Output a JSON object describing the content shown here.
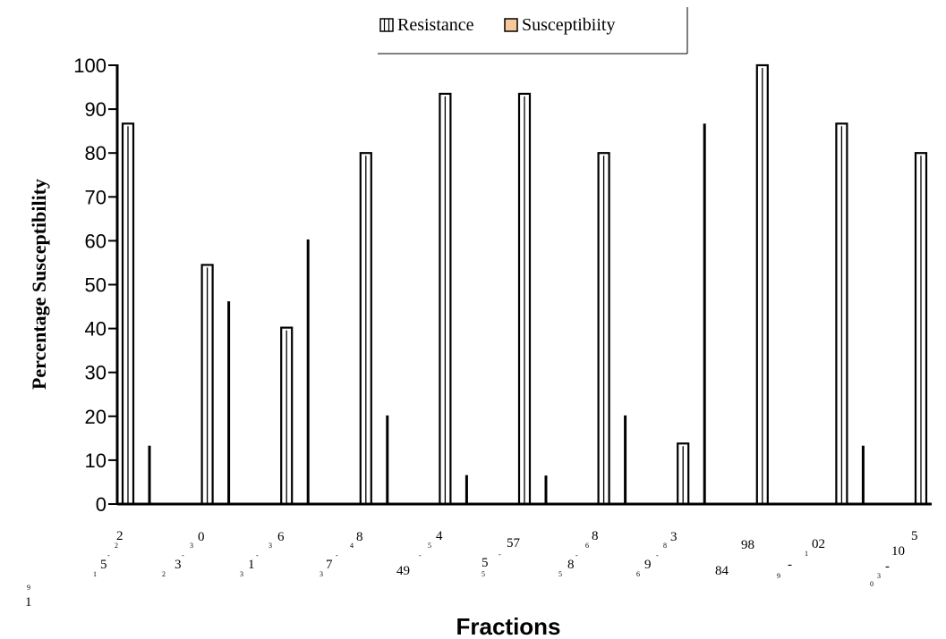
{
  "chart_data": {
    "type": "bar",
    "ylabel": "Percentage Susceptibility",
    "xlabel": "Fractions",
    "ylim": [
      0,
      100
    ],
    "yticks": [
      0,
      10,
      20,
      30,
      40,
      50,
      60,
      70,
      80,
      90,
      100
    ],
    "grid": false,
    "legend_position": "top-center",
    "series": [
      {
        "name": "Resistance",
        "color": "#ffffff",
        "values": [
          86.7,
          54.5,
          40.2,
          80,
          93.5,
          93.5,
          80,
          13.8,
          100,
          86.7,
          80
        ]
      },
      {
        "name": "Susceptibiity",
        "color": "#f9c89a",
        "values": [
          13.3,
          46.2,
          60.3,
          20.2,
          6.6,
          6.5,
          20.2,
          86.7,
          0,
          13.3,
          0
        ]
      }
    ],
    "category_label_fragments": [
      {
        "group": 0,
        "parts": [
          {
            "text": "2",
            "size": "big"
          },
          {
            "text": "2",
            "size": "small"
          },
          {
            "text": "5",
            "size": "big"
          },
          {
            "text": "-",
            "size": "small"
          },
          {
            "text": "1",
            "size": "small"
          },
          {
            "text": "9",
            "size": "small"
          },
          {
            "text": "1",
            "size": "big"
          }
        ]
      },
      {
        "group": 1,
        "parts": [
          {
            "text": "0",
            "size": "big"
          },
          {
            "text": "3",
            "size": "small"
          },
          {
            "text": "3",
            "size": "big"
          },
          {
            "text": "-",
            "size": "small"
          },
          {
            "text": "2",
            "size": "small"
          }
        ]
      },
      {
        "group": 2,
        "parts": [
          {
            "text": "6",
            "size": "big"
          },
          {
            "text": "3",
            "size": "small"
          },
          {
            "text": "1",
            "size": "big"
          },
          {
            "text": "-",
            "size": "small"
          },
          {
            "text": "3",
            "size": "small"
          }
        ]
      },
      {
        "group": 3,
        "parts": [
          {
            "text": "8",
            "size": "big"
          },
          {
            "text": "4",
            "size": "small"
          },
          {
            "text": "7",
            "size": "big"
          },
          {
            "text": "-",
            "size": "small"
          },
          {
            "text": "3",
            "size": "small"
          }
        ]
      },
      {
        "group": 4,
        "parts": [
          {
            "text": "4",
            "size": "big"
          },
          {
            "text": "5",
            "size": "small"
          },
          {
            "text": "-",
            "size": "small"
          },
          {
            "text": "49",
            "size": "big"
          }
        ]
      },
      {
        "group": 5,
        "parts": [
          {
            "text": "57",
            "size": "big"
          },
          {
            "text": "5",
            "size": "big"
          },
          {
            "text": "-",
            "size": "small"
          },
          {
            "text": "5",
            "size": "small"
          }
        ]
      },
      {
        "group": 6,
        "parts": [
          {
            "text": "8",
            "size": "big"
          },
          {
            "text": "6",
            "size": "small"
          },
          {
            "text": "8",
            "size": "big"
          },
          {
            "text": "-",
            "size": "small"
          },
          {
            "text": "5",
            "size": "small"
          }
        ]
      },
      {
        "group": 7,
        "parts": [
          {
            "text": "3",
            "size": "big"
          },
          {
            "text": "8",
            "size": "small"
          },
          {
            "text": "9",
            "size": "big"
          },
          {
            "text": "-",
            "size": "small"
          },
          {
            "text": "6",
            "size": "small"
          }
        ]
      },
      {
        "group": 8,
        "parts": [
          {
            "text": "98",
            "size": "big"
          },
          {
            "text": "84",
            "size": "big"
          }
        ]
      },
      {
        "group": 9,
        "parts": [
          {
            "text": "02",
            "size": "big"
          },
          {
            "text": "1",
            "size": "small"
          },
          {
            "text": "-",
            "size": "big"
          },
          {
            "text": "9",
            "size": "small"
          }
        ]
      },
      {
        "group": 10,
        "parts": [
          {
            "text": "5",
            "size": "big"
          },
          {
            "text": "10",
            "size": "big"
          },
          {
            "text": "-",
            "size": "big"
          },
          {
            "text": "3",
            "size": "small"
          },
          {
            "text": "0",
            "size": "small"
          }
        ]
      }
    ]
  }
}
